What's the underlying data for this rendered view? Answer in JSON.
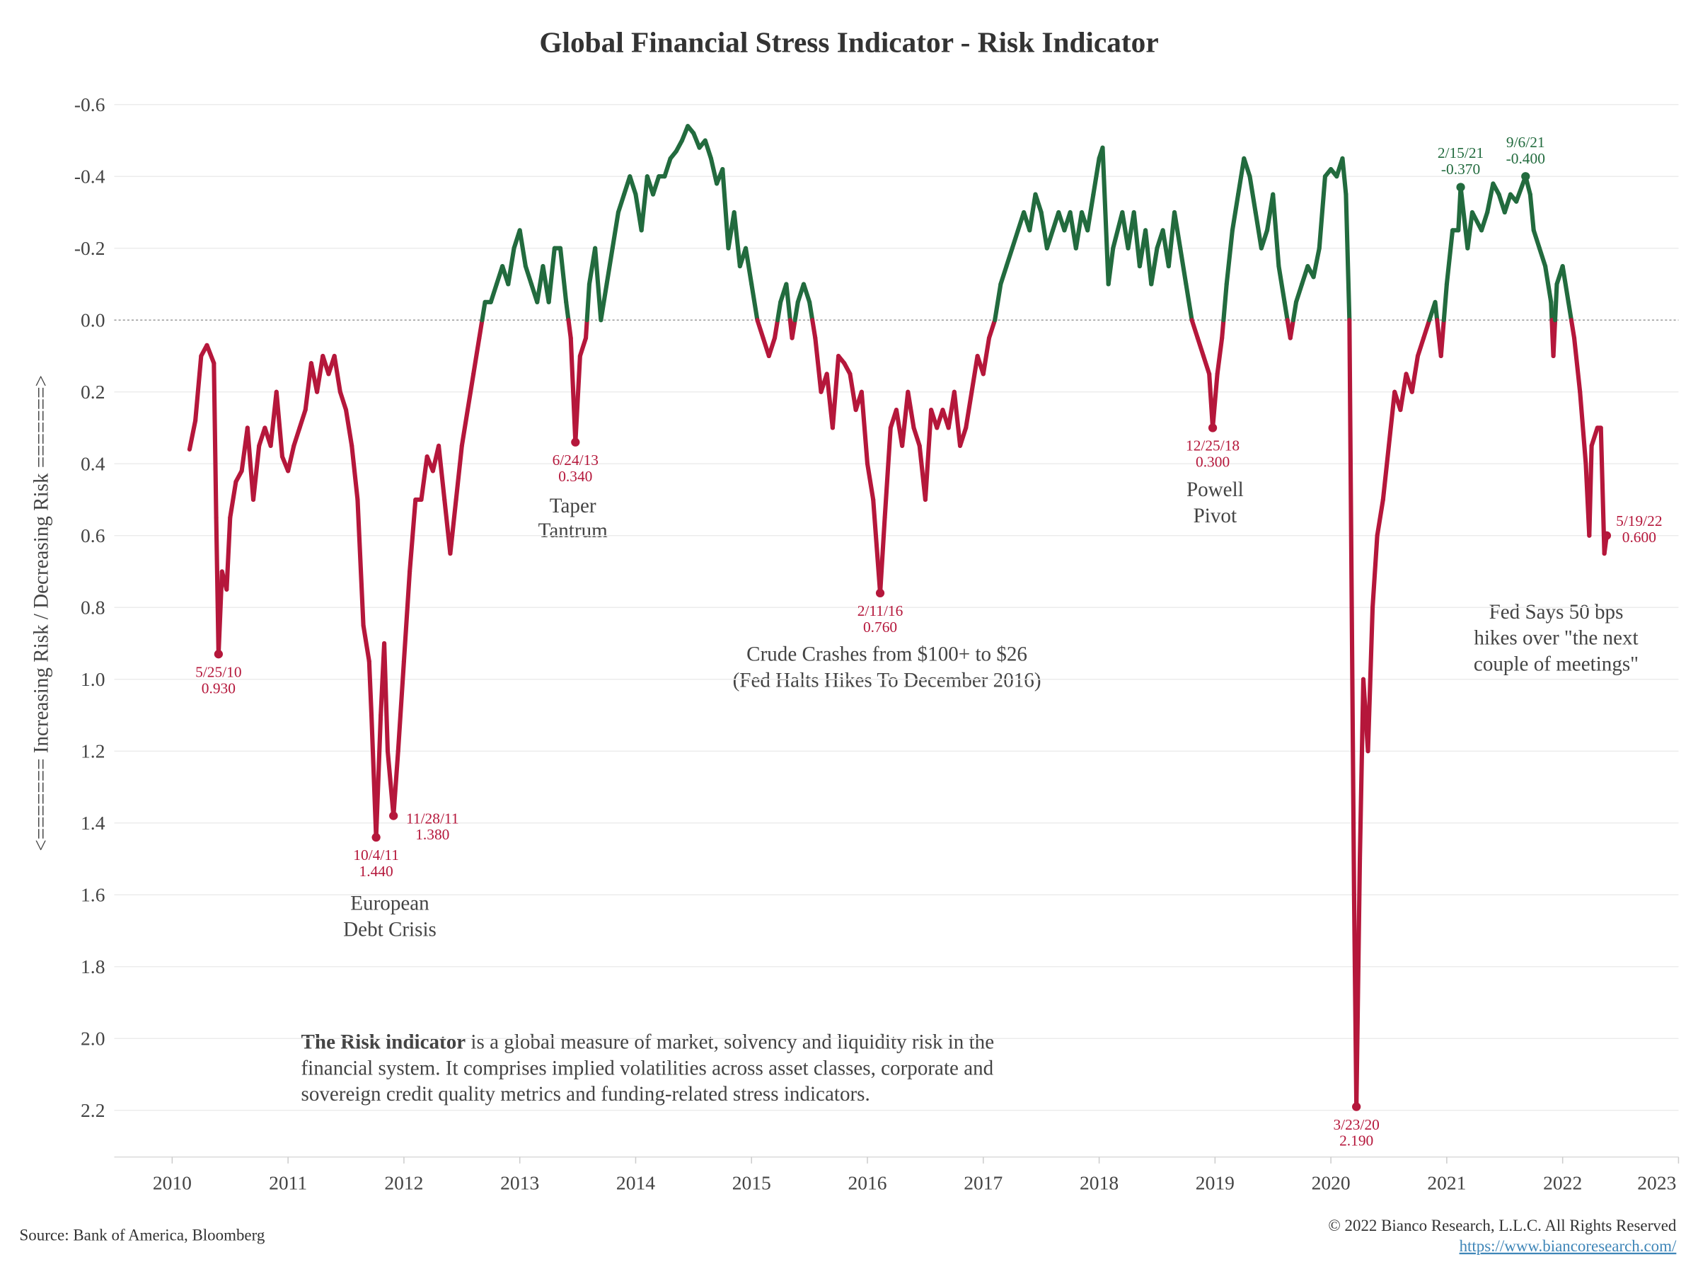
{
  "chart_data": {
    "type": "line",
    "title": "Global Financial Stress Indicator - Risk Indicator",
    "y_label": "<======= Increasing Risk / Decreasing Risk =======>",
    "y_inverted": true,
    "color_negative": "#226b3e",
    "color_positive": "#b5173b",
    "xlim": [
      2009.5,
      2023
    ],
    "xticks": [
      2010,
      2011,
      2012,
      2013,
      2014,
      2015,
      2016,
      2017,
      2018,
      2019,
      2020,
      2021,
      2022,
      2023
    ],
    "ylim": [
      -0.68,
      2.33
    ],
    "yticks": [
      -0.6,
      -0.4,
      -0.2,
      {
        "value": 0,
        "label": "0.0"
      },
      0.2,
      0.4,
      0.6,
      0.8,
      {
        "value": 1,
        "label": "1.0"
      },
      1.2,
      1.4,
      1.6,
      1.8,
      {
        "value": 2,
        "label": "2.0"
      },
      2.2
    ],
    "grid": true,
    "x": [
      2010.15,
      2010.2,
      2010.25,
      2010.3,
      2010.36,
      2010.38,
      2010.4,
      2010.43,
      2010.47,
      2010.5,
      2010.55,
      2010.6,
      2010.65,
      2010.7,
      2010.75,
      2010.8,
      2010.85,
      2010.9,
      2010.95,
      2011.0,
      2011.05,
      2011.1,
      2011.15,
      2011.2,
      2011.25,
      2011.3,
      2011.35,
      2011.4,
      2011.45,
      2011.5,
      2011.55,
      2011.6,
      2011.65,
      2011.7,
      2011.72,
      2011.76,
      2011.8,
      2011.83,
      2011.86,
      2011.91,
      2011.95,
      2012.0,
      2012.05,
      2012.1,
      2012.15,
      2012.2,
      2012.25,
      2012.3,
      2012.35,
      2012.4,
      2012.45,
      2012.5,
      2012.55,
      2012.6,
      2012.65,
      2012.7,
      2012.75,
      2012.8,
      2012.85,
      2012.9,
      2012.95,
      2013.0,
      2013.05,
      2013.1,
      2013.15,
      2013.2,
      2013.25,
      2013.3,
      2013.35,
      2013.4,
      2013.44,
      2013.48,
      2013.52,
      2013.57,
      2013.6,
      2013.65,
      2013.7,
      2013.75,
      2013.8,
      2013.85,
      2013.9,
      2013.95,
      2014.0,
      2014.05,
      2014.1,
      2014.15,
      2014.2,
      2014.25,
      2014.3,
      2014.35,
      2014.4,
      2014.45,
      2014.5,
      2014.55,
      2014.6,
      2014.65,
      2014.7,
      2014.75,
      2014.8,
      2014.85,
      2014.9,
      2014.95,
      2015.0,
      2015.05,
      2015.1,
      2015.15,
      2015.2,
      2015.25,
      2015.3,
      2015.35,
      2015.4,
      2015.45,
      2015.5,
      2015.55,
      2015.6,
      2015.65,
      2015.7,
      2015.75,
      2015.8,
      2015.85,
      2015.9,
      2015.95,
      2016.0,
      2016.05,
      2016.11,
      2016.15,
      2016.2,
      2016.25,
      2016.3,
      2016.35,
      2016.4,
      2016.45,
      2016.5,
      2016.55,
      2016.6,
      2016.65,
      2016.7,
      2016.75,
      2016.8,
      2016.85,
      2016.9,
      2016.95,
      2017.0,
      2017.05,
      2017.1,
      2017.15,
      2017.2,
      2017.25,
      2017.3,
      2017.35,
      2017.4,
      2017.45,
      2017.5,
      2017.55,
      2017.6,
      2017.65,
      2017.7,
      2017.75,
      2017.8,
      2017.85,
      2017.9,
      2017.95,
      2018.0,
      2018.03,
      2018.08,
      2018.12,
      2018.2,
      2018.25,
      2018.3,
      2018.35,
      2018.4,
      2018.45,
      2018.5,
      2018.55,
      2018.6,
      2018.65,
      2018.7,
      2018.75,
      2018.8,
      2018.85,
      2018.9,
      2018.95,
      2018.98,
      2019.02,
      2019.06,
      2019.1,
      2019.15,
      2019.2,
      2019.25,
      2019.3,
      2019.35,
      2019.4,
      2019.45,
      2019.5,
      2019.55,
      2019.6,
      2019.65,
      2019.7,
      2019.75,
      2019.8,
      2019.85,
      2019.9,
      2019.95,
      2020.0,
      2020.05,
      2020.1,
      2020.13,
      2020.16,
      2020.18,
      2020.2,
      2020.22,
      2020.25,
      2020.28,
      2020.32,
      2020.36,
      2020.4,
      2020.45,
      2020.5,
      2020.55,
      2020.6,
      2020.65,
      2020.7,
      2020.75,
      2020.8,
      2020.85,
      2020.9,
      2020.95,
      2021.0,
      2021.05,
      2021.1,
      2021.12,
      2021.18,
      2021.22,
      2021.3,
      2021.35,
      2021.4,
      2021.45,
      2021.5,
      2021.55,
      2021.6,
      2021.68,
      2021.72,
      2021.75,
      2021.8,
      2021.85,
      2021.9,
      2021.92,
      2021.95,
      2022.0,
      2022.05,
      2022.1,
      2022.15,
      2022.2,
      2022.23,
      2022.25,
      2022.3,
      2022.33,
      2022.36,
      2022.38
    ],
    "values": [
      0.36,
      0.28,
      0.1,
      0.07,
      0.12,
      0.55,
      0.93,
      0.7,
      0.75,
      0.55,
      0.45,
      0.42,
      0.3,
      0.5,
      0.35,
      0.3,
      0.35,
      0.2,
      0.38,
      0.42,
      0.35,
      0.3,
      0.25,
      0.12,
      0.2,
      0.1,
      0.15,
      0.1,
      0.2,
      0.25,
      0.35,
      0.5,
      0.85,
      0.95,
      1.1,
      1.44,
      1.1,
      0.9,
      1.2,
      1.38,
      1.2,
      0.95,
      0.7,
      0.5,
      0.5,
      0.38,
      0.42,
      0.35,
      0.5,
      0.65,
      0.5,
      0.35,
      0.25,
      0.15,
      0.05,
      -0.05,
      -0.05,
      -0.1,
      -0.15,
      -0.1,
      -0.2,
      -0.25,
      -0.15,
      -0.1,
      -0.05,
      -0.15,
      -0.05,
      -0.2,
      -0.2,
      -0.05,
      0.05,
      0.34,
      0.1,
      0.05,
      -0.1,
      -0.2,
      0.0,
      -0.1,
      -0.2,
      -0.3,
      -0.35,
      -0.4,
      -0.35,
      -0.25,
      -0.4,
      -0.35,
      -0.4,
      -0.4,
      -0.45,
      -0.47,
      -0.5,
      -0.54,
      -0.52,
      -0.48,
      -0.5,
      -0.45,
      -0.38,
      -0.42,
      -0.2,
      -0.3,
      -0.15,
      -0.2,
      -0.1,
      0.0,
      0.05,
      0.1,
      0.05,
      -0.05,
      -0.1,
      0.05,
      -0.05,
      -0.1,
      -0.05,
      0.05,
      0.2,
      0.15,
      0.3,
      0.1,
      0.12,
      0.15,
      0.25,
      0.2,
      0.4,
      0.5,
      0.76,
      0.55,
      0.3,
      0.25,
      0.35,
      0.2,
      0.3,
      0.35,
      0.5,
      0.25,
      0.3,
      0.25,
      0.3,
      0.2,
      0.35,
      0.3,
      0.2,
      0.1,
      0.15,
      0.05,
      0.0,
      -0.1,
      -0.15,
      -0.2,
      -0.25,
      -0.3,
      -0.25,
      -0.35,
      -0.3,
      -0.2,
      -0.25,
      -0.3,
      -0.25,
      -0.3,
      -0.2,
      -0.3,
      -0.25,
      -0.35,
      -0.45,
      -0.48,
      -0.1,
      -0.2,
      -0.3,
      -0.2,
      -0.3,
      -0.15,
      -0.25,
      -0.1,
      -0.2,
      -0.25,
      -0.15,
      -0.3,
      -0.2,
      -0.1,
      0.0,
      0.05,
      0.1,
      0.15,
      0.3,
      0.15,
      0.05,
      -0.1,
      -0.25,
      -0.35,
      -0.45,
      -0.4,
      -0.3,
      -0.2,
      -0.25,
      -0.35,
      -0.15,
      -0.05,
      0.05,
      -0.05,
      -0.1,
      -0.15,
      -0.12,
      -0.2,
      -0.4,
      -0.42,
      -0.4,
      -0.45,
      -0.35,
      0.0,
      0.8,
      1.6,
      2.19,
      1.5,
      1.0,
      1.2,
      0.8,
      0.6,
      0.5,
      0.35,
      0.2,
      0.25,
      0.15,
      0.2,
      0.1,
      0.05,
      0.0,
      -0.05,
      0.1,
      -0.1,
      -0.25,
      -0.25,
      -0.37,
      -0.2,
      -0.3,
      -0.25,
      -0.3,
      -0.38,
      -0.35,
      -0.3,
      -0.35,
      -0.33,
      -0.4,
      -0.35,
      -0.25,
      -0.2,
      -0.15,
      -0.05,
      0.1,
      -0.1,
      -0.15,
      -0.05,
      0.05,
      0.2,
      0.4,
      0.6,
      0.35,
      0.3,
      0.3,
      0.65,
      0.6
    ],
    "annotations": [
      {
        "x": 2010.4,
        "value": 0.93,
        "label": "5/25/10",
        "value_label": "0.930"
      },
      {
        "x": 2011.76,
        "value": 1.44,
        "label": "10/4/11",
        "value_label": "1.440"
      },
      {
        "x": 2011.91,
        "value": 1.38,
        "label": "11/28/11",
        "value_label": "1.380"
      },
      {
        "x": 2013.48,
        "value": 0.34,
        "label": "6/24/13",
        "value_label": "0.340"
      },
      {
        "x": 2016.11,
        "value": 0.76,
        "label": "2/11/16",
        "value_label": "0.760"
      },
      {
        "x": 2018.98,
        "value": 0.3,
        "label": "12/25/18",
        "value_label": "0.300"
      },
      {
        "x": 2020.22,
        "value": 2.19,
        "label": "3/23/20",
        "value_label": "2.190"
      },
      {
        "x": 2021.12,
        "value": -0.37,
        "label": "2/15/21",
        "value_label": "-0.370"
      },
      {
        "x": 2021.68,
        "value": -0.4,
        "label": "9/6/21",
        "value_label": "-0.400"
      },
      {
        "x": 2022.38,
        "value": 0.6,
        "label": "5/19/22",
        "value_label": "0.600"
      }
    ],
    "events": {
      "european": [
        "European",
        "Debt Crisis"
      ],
      "taper": [
        "Taper",
        "Tantrum"
      ],
      "crude": [
        "Crude Crashes from $100+ to $26",
        "(Fed Halts Hikes To December 2016)"
      ],
      "powell": [
        "Powell",
        "Pivot"
      ],
      "fed": [
        "Fed Says 50 bps",
        "hikes over \"the next",
        "couple of meetings\""
      ]
    },
    "note": {
      "bold": "The Risk indicator",
      "lines": [
        " is a global measure of market, solvency and liquidity risk in the",
        "financial system. It comprises implied volatilities across asset classes, corporate and",
        "sovereign credit quality metrics and funding-related stress indicators."
      ]
    },
    "source": "Source: Bank of America, Bloomberg",
    "copyright": "© 2022 Bianco Research, L.L.C. All Rights Reserved",
    "url": "https://www.biancoresearch.com/"
  }
}
